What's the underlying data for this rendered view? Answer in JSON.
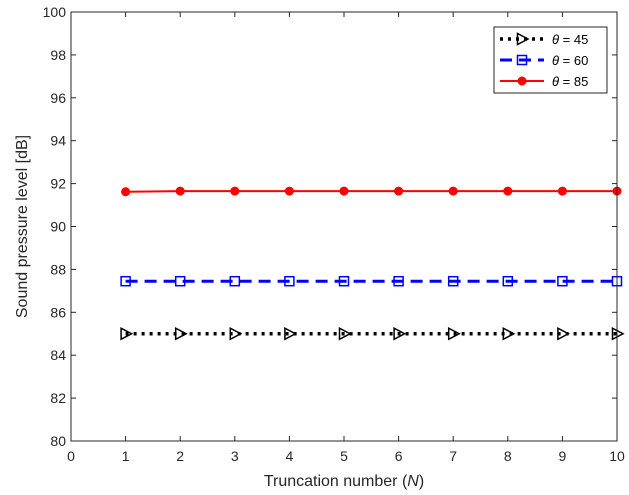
{
  "chart_data": {
    "type": "line",
    "xlabel": "Truncation number (",
    "xlabel_var": "N",
    "xlabel_end": ")",
    "ylabel": "Sound pressure level [dB]",
    "xlim": [
      0,
      10
    ],
    "ylim": [
      80,
      100
    ],
    "xticks": [
      0,
      1,
      2,
      3,
      4,
      5,
      6,
      7,
      8,
      9,
      10
    ],
    "yticks": [
      80,
      82,
      84,
      86,
      88,
      90,
      92,
      94,
      96,
      98,
      100
    ],
    "grid": false,
    "legend_position": "top-right",
    "x": [
      1,
      2,
      3,
      4,
      5,
      6,
      7,
      8,
      9,
      10
    ],
    "series": [
      {
        "name": "θ = 45",
        "legend_symbol": "θ",
        "legend_rest": " = 45",
        "values": [
          85.0,
          85.0,
          85.0,
          85.0,
          85.0,
          85.0,
          85.0,
          85.0,
          85.0,
          85.0
        ],
        "color": "#000000",
        "line": "dotted",
        "marker": "triangle-right"
      },
      {
        "name": "θ = 60",
        "legend_symbol": "θ",
        "legend_rest": " = 60",
        "values": [
          87.45,
          87.45,
          87.45,
          87.45,
          87.45,
          87.45,
          87.45,
          87.45,
          87.45,
          87.45
        ],
        "color": "#0000ff",
        "line": "dashed",
        "marker": "square"
      },
      {
        "name": "θ = 85",
        "legend_symbol": "θ",
        "legend_rest": " = 85",
        "values": [
          91.62,
          91.65,
          91.65,
          91.65,
          91.65,
          91.65,
          91.65,
          91.65,
          91.65,
          91.65
        ],
        "color": "#ff0000",
        "line": "solid",
        "marker": "circle"
      }
    ]
  }
}
